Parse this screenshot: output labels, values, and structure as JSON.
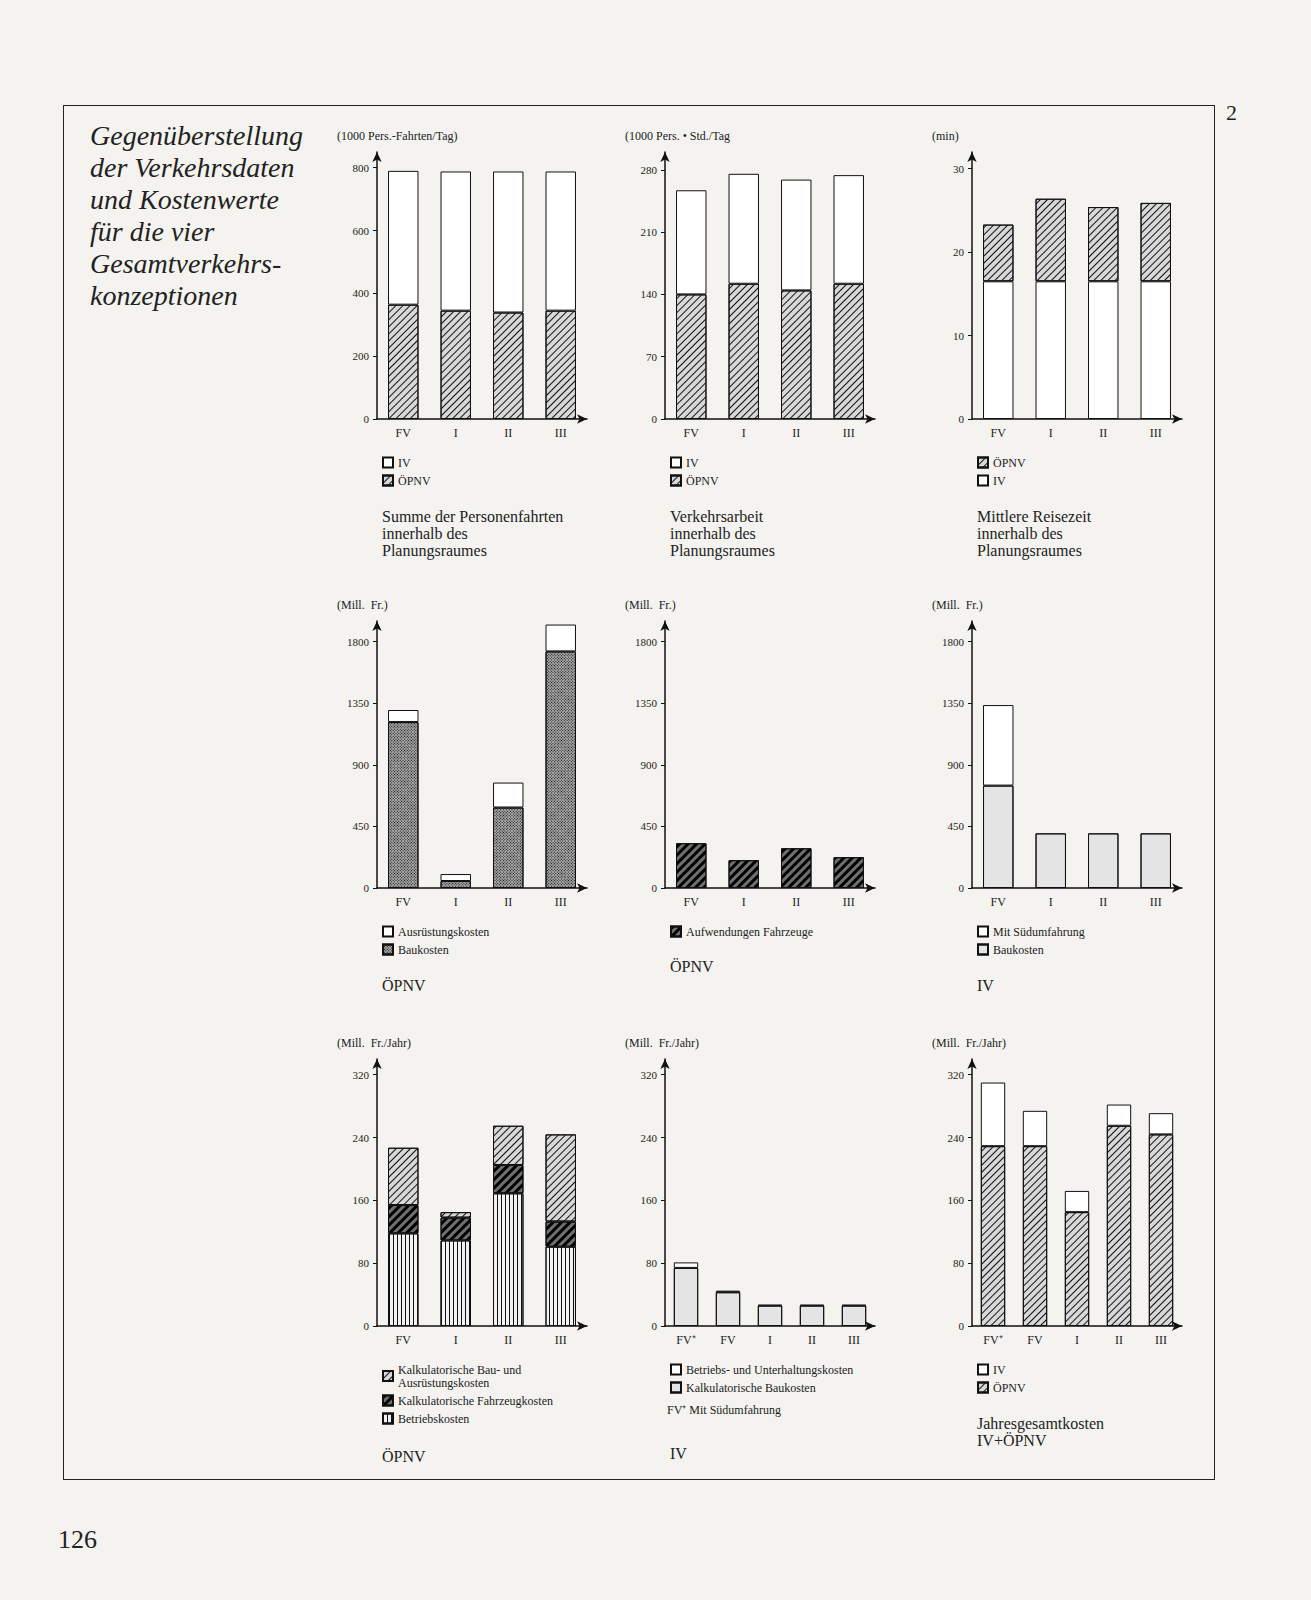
{
  "heading": "Gegenüberstellung\nder Verkehrsdaten\nund Kostenwerte\nfür die vier\nGesamtverkehrs-\nkonzeptionen",
  "plate_number": "2",
  "page_number": "126",
  "chart_data": [
    {
      "type": "bar",
      "stacked": true,
      "grid": false,
      "title": "Summe der Personenfahrten\ninnerhalb des\nPlanungsraumes",
      "ylabel": "(1000 Pers.-Fahrten/Tag)",
      "categories": [
        "FV",
        "I",
        "II",
        "III"
      ],
      "series": [
        {
          "name": "ÖPNV",
          "color": "#d8d8d8",
          "values": [
            364,
            345,
            339,
            345
          ]
        },
        {
          "name": "IV",
          "color": "#ffffff",
          "values": [
            426,
            443,
            449,
            443
          ]
        }
      ],
      "ylim": [
        0,
        850
      ],
      "yticks": [
        0,
        200,
        400,
        600,
        800
      ]
    },
    {
      "type": "bar",
      "stacked": true,
      "grid": false,
      "title": "Verkehrsarbeit\ninnerhalb des\nPlanungsraumes",
      "ylabel": "(1000 Pers. • Std./Tag",
      "categories": [
        "FV",
        "I",
        "II",
        "III"
      ],
      "series": [
        {
          "name": "ÖPNV",
          "color": "#d8d8d8",
          "values": [
            140,
            152,
            144.5,
            152
          ]
        },
        {
          "name": "IV",
          "color": "#ffffff",
          "values": [
            117,
            123.5,
            124.5,
            122
          ]
        }
      ],
      "ylim": [
        0,
        300
      ],
      "yticks": [
        0,
        70,
        140,
        210,
        280
      ]
    },
    {
      "type": "bar",
      "stacked": true,
      "grid": false,
      "title": "Mittlere Reisezeit\ninnerhalb des\nPlanungsraumes",
      "ylabel": "(min)",
      "categories": [
        "FV",
        "I",
        "II",
        "III"
      ],
      "series": [
        {
          "name": "IV",
          "color": "#ffffff",
          "values": [
            16.5,
            16.5,
            16.5,
            16.5
          ]
        },
        {
          "name": "ÖPNV",
          "color": "#d8d8d8",
          "values": [
            6.8,
            9.9,
            8.9,
            9.4
          ]
        }
      ],
      "ylim": [
        0,
        32
      ],
      "yticks": [
        0,
        10,
        20,
        30
      ]
    },
    {
      "type": "bar",
      "stacked": true,
      "grid": false,
      "title": "ÖPNV",
      "ylabel": "(Mill.  Fr.)",
      "categories": [
        "FV",
        "I",
        "II",
        "III"
      ],
      "series": [
        {
          "name": "Baukosten",
          "color": "#a8a8a8",
          "values": [
            1212,
            51,
            588,
            1728
          ]
        },
        {
          "name": "Ausrüstungskosten",
          "color": "#ffffff",
          "values": [
            88,
            51,
            182,
            196
          ]
        }
      ],
      "ylim": [
        0,
        1950
      ],
      "yticks": [
        0,
        450,
        900,
        1350,
        1800
      ]
    },
    {
      "type": "bar",
      "stacked": false,
      "grid": false,
      "title": "ÖPNV",
      "ylabel": "(Mill.  Fr.)",
      "categories": [
        "FV",
        "I",
        "II",
        "III"
      ],
      "series": [
        {
          "name": "Aufwendungen Fahrzeuge",
          "color": "#707070",
          "values": [
            327,
            203,
            290,
            225
          ]
        }
      ],
      "ylim": [
        0,
        1950
      ],
      "yticks": [
        0,
        450,
        900,
        1350,
        1800
      ]
    },
    {
      "type": "bar",
      "stacked": true,
      "grid": false,
      "title": "IV",
      "ylabel": "(Mill.  Fr.)",
      "categories": [
        "FV",
        "I",
        "II",
        "III"
      ],
      "series": [
        {
          "name": "Baukosten",
          "color": "#e4e4e4",
          "values": [
            748,
            399,
            399,
            399
          ]
        },
        {
          "name": "Mit Südumfahrung",
          "color": "#ffffff",
          "values": [
            588,
            null,
            null,
            null
          ]
        }
      ],
      "ylim": [
        0,
        1950
      ],
      "yticks": [
        0,
        450,
        900,
        1350,
        1800
      ]
    },
    {
      "type": "bar",
      "stacked": true,
      "grid": false,
      "title": "ÖPNV",
      "ylabel": "(Mill.  Fr./Jahr)",
      "categories": [
        "FV",
        "I",
        "II",
        "III"
      ],
      "series": [
        {
          "name": "Betriebskosten",
          "color": "#f2f2f2",
          "values": [
            118,
            109,
            169,
            101
          ]
        },
        {
          "name": "Kalkulatorische Fahrzeugkosten",
          "color": "#707070",
          "values": [
            36,
            29,
            36,
            32
          ]
        },
        {
          "name": "Kalkulatorische Bau- und\nAusrüstungskosten",
          "color": "#d8d8d8",
          "values": [
            73,
            7,
            50,
            111
          ]
        }
      ],
      "ylim": [
        0,
        340
      ],
      "yticks": [
        0,
        80,
        160,
        240,
        320
      ]
    },
    {
      "type": "bar",
      "stacked": true,
      "grid": false,
      "title": "IV",
      "annotation": "FV⁺ Mit Südumfahrung",
      "ylabel": "(Mill.  Fr./Jahr)",
      "categories": [
        "FV⁺",
        "FV",
        "I",
        "II",
        "III"
      ],
      "series": [
        {
          "name": "Kalkulatorische Baukosten",
          "color": "#e4e4e4",
          "values": [
            74,
            43,
            26,
            26,
            26
          ]
        },
        {
          "name": "Betriebs- und Unterhaltungskosten",
          "color": "#ffffff",
          "values": [
            7,
            2,
            1,
            1,
            1
          ]
        }
      ],
      "ylim": [
        0,
        340
      ],
      "yticks": [
        0,
        80,
        160,
        240,
        320
      ]
    },
    {
      "type": "bar",
      "stacked": true,
      "grid": false,
      "title": "Jahresgesamtkosten\nIV+ÖPNV",
      "ylabel": "(Mill.  Fr./Jahr)",
      "categories": [
        "FV⁺",
        "FV",
        "I",
        "II",
        "III"
      ],
      "series": [
        {
          "name": "ÖPNV",
          "color": "#d8d8d8",
          "values": [
            229,
            229,
            145,
            255,
            244
          ]
        },
        {
          "name": "IV",
          "color": "#ffffff",
          "values": [
            81,
            45,
            27,
            27,
            27
          ]
        }
      ],
      "ylim": [
        0,
        340
      ],
      "yticks": [
        0,
        80,
        160,
        240,
        320
      ]
    }
  ]
}
